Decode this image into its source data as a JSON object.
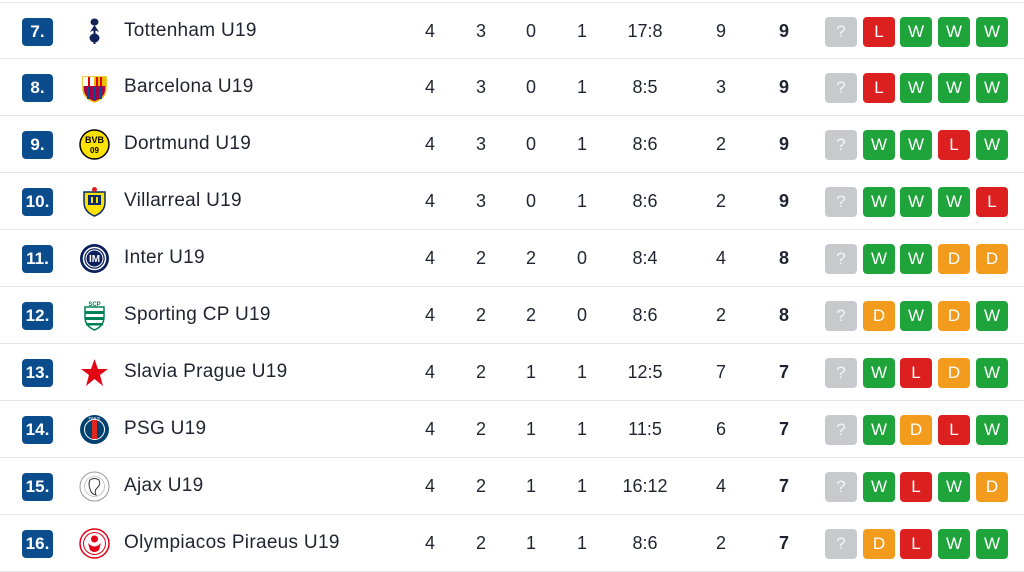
{
  "colors": {
    "rank_badge": "#0b4c8c",
    "win": "#1ea43a",
    "loss": "#dc1f1f",
    "draw": "#f39b1c",
    "upcoming": "#c7c9cc"
  },
  "rows": [
    {
      "rank": "7.",
      "team": "Tottenham U19",
      "logo": "tottenham-logo-icon",
      "mp": "4",
      "w": "3",
      "d": "0",
      "l": "1",
      "goals": "17:8",
      "gd": "9",
      "pts": "9",
      "form": [
        "?",
        "L",
        "W",
        "W",
        "W"
      ]
    },
    {
      "rank": "8.",
      "team": "Barcelona U19",
      "logo": "barcelona-logo-icon",
      "mp": "4",
      "w": "3",
      "d": "0",
      "l": "1",
      "goals": "8:5",
      "gd": "3",
      "pts": "9",
      "form": [
        "?",
        "L",
        "W",
        "W",
        "W"
      ]
    },
    {
      "rank": "9.",
      "team": "Dortmund U19",
      "logo": "dortmund-logo-icon",
      "mp": "4",
      "w": "3",
      "d": "0",
      "l": "1",
      "goals": "8:6",
      "gd": "2",
      "pts": "9",
      "form": [
        "?",
        "W",
        "W",
        "L",
        "W"
      ]
    },
    {
      "rank": "10.",
      "team": "Villarreal U19",
      "logo": "villarreal-logo-icon",
      "mp": "4",
      "w": "3",
      "d": "0",
      "l": "1",
      "goals": "8:6",
      "gd": "2",
      "pts": "9",
      "form": [
        "?",
        "W",
        "W",
        "W",
        "L"
      ]
    },
    {
      "rank": "11.",
      "team": "Inter U19",
      "logo": "inter-logo-icon",
      "mp": "4",
      "w": "2",
      "d": "2",
      "l": "0",
      "goals": "8:4",
      "gd": "4",
      "pts": "8",
      "form": [
        "?",
        "W",
        "W",
        "D",
        "D"
      ]
    },
    {
      "rank": "12.",
      "team": "Sporting CP U19",
      "logo": "sporting-logo-icon",
      "mp": "4",
      "w": "2",
      "d": "2",
      "l": "0",
      "goals": "8:6",
      "gd": "2",
      "pts": "8",
      "form": [
        "?",
        "D",
        "W",
        "D",
        "W"
      ]
    },
    {
      "rank": "13.",
      "team": "Slavia Prague U19",
      "logo": "slavia-logo-icon",
      "mp": "4",
      "w": "2",
      "d": "1",
      "l": "1",
      "goals": "12:5",
      "gd": "7",
      "pts": "7",
      "form": [
        "?",
        "W",
        "L",
        "D",
        "W"
      ]
    },
    {
      "rank": "14.",
      "team": "PSG U19",
      "logo": "psg-logo-icon",
      "mp": "4",
      "w": "2",
      "d": "1",
      "l": "1",
      "goals": "11:5",
      "gd": "6",
      "pts": "7",
      "form": [
        "?",
        "W",
        "D",
        "L",
        "W"
      ]
    },
    {
      "rank": "15.",
      "team": "Ajax U19",
      "logo": "ajax-logo-icon",
      "mp": "4",
      "w": "2",
      "d": "1",
      "l": "1",
      "goals": "16:12",
      "gd": "4",
      "pts": "7",
      "form": [
        "?",
        "W",
        "L",
        "W",
        "D"
      ]
    },
    {
      "rank": "16.",
      "team": "Olympiacos Piraeus U19",
      "logo": "olympiacos-logo-icon",
      "mp": "4",
      "w": "2",
      "d": "1",
      "l": "1",
      "goals": "8:6",
      "gd": "2",
      "pts": "7",
      "form": [
        "?",
        "D",
        "L",
        "W",
        "W"
      ]
    }
  ]
}
